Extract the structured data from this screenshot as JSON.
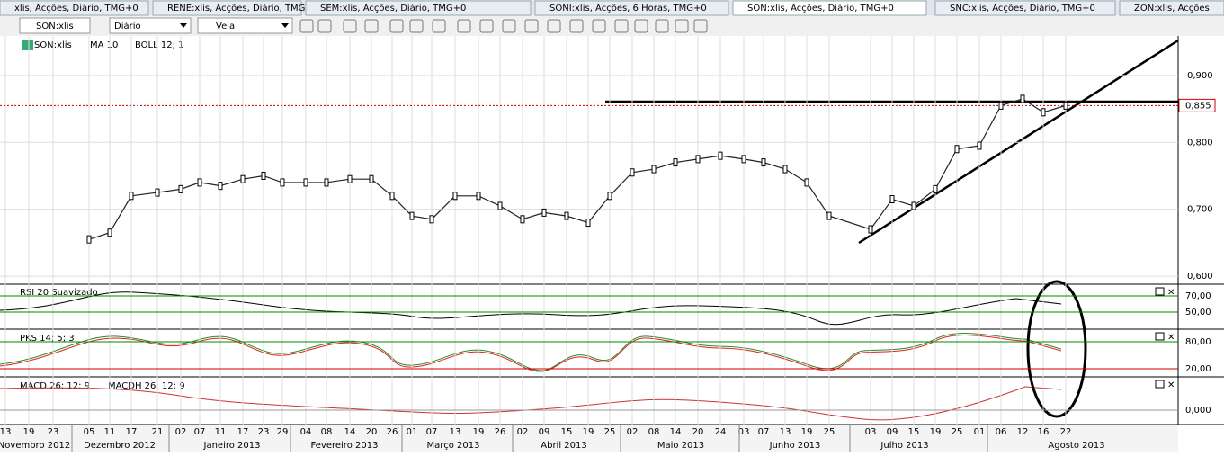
{
  "tabs": [
    "xlis, Acções, Diário, TMG+0",
    "RENE:xlis, Acções, Diário, TMG+0",
    "SEM:xlis, Acções, Diário, TMG+0",
    "SONI:xlis, Acções, 6 Horas, TMG+0",
    "SON:xlis, Acções, Diário, TMG+0",
    "SNC:xlis, Acções, Diário, TMG+0",
    "ZON:xlis, Acções"
  ],
  "toolbar": {
    "symbol": "SON:xlis",
    "period": "Diário",
    "style": "Vela"
  },
  "legend": {
    "symbol": "SON:xlis",
    "ma": "MA 10",
    "boll": "BOLL 12; 1"
  },
  "price_panel": {
    "ylim": [
      0.588,
      0.959
    ],
    "yticks": [
      {
        "value": 0.6,
        "label": "0,600"
      },
      {
        "value": 0.7,
        "label": "0,700"
      },
      {
        "value": 0.8,
        "label": "0,800"
      },
      {
        "value": 0.9,
        "label": "0,900"
      }
    ],
    "last": {
      "value": 0.855,
      "label": "0,855"
    },
    "close": [
      null,
      null,
      null,
      0.655,
      0.665,
      0.72,
      0.725,
      0.73,
      0.74,
      0.735,
      0.745,
      0.75,
      0.74,
      0.74,
      0.74,
      0.745,
      0.745,
      0.72,
      0.69,
      0.685,
      0.72,
      0.72,
      0.705,
      0.685,
      0.695,
      0.69,
      0.68,
      0.72,
      0.755,
      0.76,
      0.77,
      0.775,
      0.78,
      0.775,
      0.77,
      0.76,
      0.74,
      0.69,
      0.67,
      0.715,
      0.705,
      0.73,
      0.79,
      0.795,
      0.855,
      0.865,
      0.845,
      0.855
    ]
  },
  "rsi_panel": {
    "title": "RSI 20 Suavizado",
    "ylim": [
      30,
      83.3
    ],
    "levels": [
      {
        "value": 70,
        "label": "70,00"
      },
      {
        "value": 50,
        "label": "50,00"
      }
    ]
  },
  "pks_panel": {
    "title": "PKS 14; 5; 3",
    "ylim": [
      4,
      106
    ],
    "levels": [
      {
        "value": 80,
        "label": "80,00"
      },
      {
        "value": 20,
        "label": "20,00"
      }
    ]
  },
  "macd_panel": {
    "titles": [
      "MACD 26; 12; 9",
      "MACDH 26; 12; 9"
    ],
    "ylim": [
      -0.014,
      0.036
    ],
    "levels": [
      {
        "value": 0,
        "label": "0,000"
      }
    ]
  },
  "dates": [
    "13",
    "19",
    "23",
    "05",
    "11",
    "17",
    "21",
    "02",
    "07",
    "11",
    "17",
    "23",
    "29",
    "04",
    "08",
    "14",
    "20",
    "26",
    "01",
    "07",
    "13",
    "19",
    "26",
    "02",
    "09",
    "15",
    "19",
    "25",
    "02",
    "08",
    "14",
    "20",
    "24",
    "03",
    "07",
    "13",
    "19",
    "25",
    "03",
    "09",
    "15",
    "19",
    "25",
    "01",
    "06",
    "12",
    "16",
    "22"
  ],
  "months": [
    "Novembro 2012",
    "Dezembro 2012",
    "Janeiro 2013",
    "Fevereiro 2013",
    "Março 2013",
    "Abril 2013",
    "Maio 2013",
    "Junho 2013",
    "Julho 2013",
    "Agosto 2013"
  ]
}
